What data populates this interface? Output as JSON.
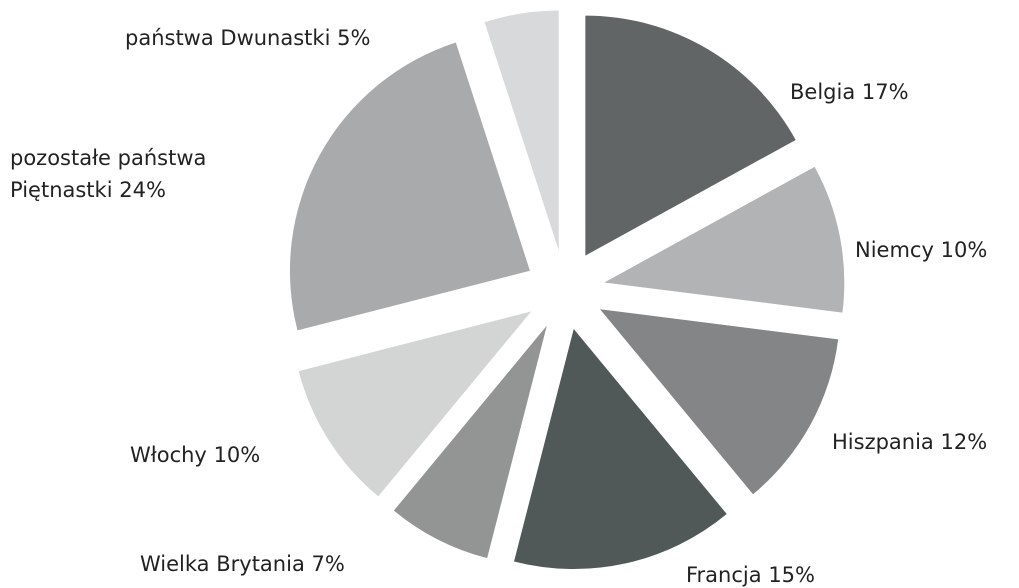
{
  "chart_data": {
    "type": "pie",
    "categories": [
      "Belgia",
      "Niemcy",
      "Hiszpania",
      "Francja",
      "Wielka Brytania",
      "Włochy",
      "pozostałe państwa Piętnastki",
      "państwa Dwunastki"
    ],
    "values": [
      17,
      10,
      12,
      15,
      7,
      10,
      24,
      5
    ],
    "value_labels": [
      "17%",
      "10%",
      "12%",
      "15%",
      "7%",
      "10%",
      "24%",
      "5%"
    ],
    "colors": [
      "#626565",
      "#b2b3b4",
      "#848586",
      "#505957",
      "#939494",
      "#d3d4d4",
      "#a9aaab",
      "#d8d9da"
    ]
  }
}
